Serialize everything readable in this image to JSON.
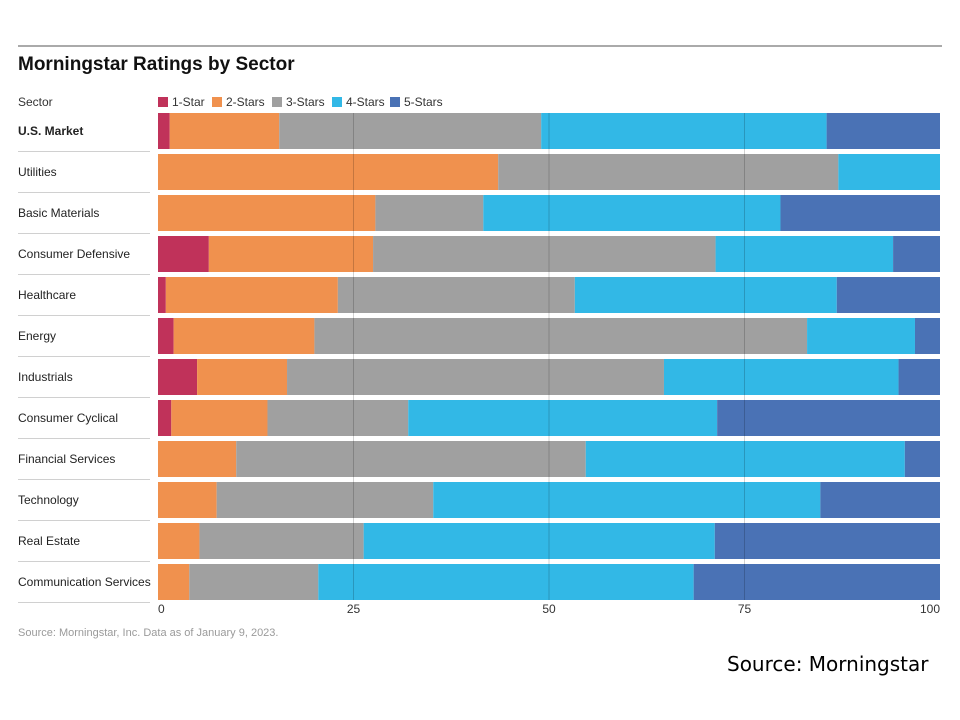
{
  "chart_data": {
    "type": "bar",
    "orientation": "horizontal",
    "stacked": true,
    "title": "Morningstar Ratings by Sector",
    "category_header": "Sector",
    "categories": [
      "U.S. Market",
      "Utilities",
      "Basic Materials",
      "Consumer Defensive",
      "Healthcare",
      "Energy",
      "Industrials",
      "Consumer Cyclical",
      "Financial Services",
      "Technology",
      "Real Estate",
      "Communication Services"
    ],
    "highlight_category": "U.S. Market",
    "series": [
      {
        "name": "1-Star",
        "color": "#c0325a",
        "values": [
          1.5,
          0,
          0,
          6.5,
          1,
          2,
          5,
          1.7,
          0,
          0,
          0,
          0
        ]
      },
      {
        "name": "2-Stars",
        "color": "#f0914e",
        "values": [
          14,
          43.5,
          27.8,
          21,
          22,
          18,
          11.5,
          12.3,
          10,
          7.5,
          5.3,
          4
        ]
      },
      {
        "name": "3-Stars",
        "color": "#a0a0a0",
        "values": [
          33.5,
          43.5,
          13.8,
          43.8,
          30.3,
          63,
          48.2,
          18,
          44.7,
          27.7,
          21,
          16.5
        ]
      },
      {
        "name": "4-Stars",
        "color": "#32b8e6",
        "values": [
          36.5,
          13,
          38,
          22.7,
          33.5,
          13.8,
          30,
          39.5,
          40.8,
          49.5,
          44.9,
          48
        ]
      },
      {
        "name": "5-Stars",
        "color": "#4a72b5",
        "values": [
          14.5,
          0,
          20.4,
          6,
          13.2,
          3.2,
          5.3,
          28.5,
          4.5,
          15.3,
          28.8,
          31.5
        ]
      }
    ],
    "xlim": [
      0,
      100
    ],
    "xticks": [
      0,
      25,
      50,
      75,
      100
    ],
    "grid": true,
    "legend_position": "top"
  },
  "note": "Source: Morningstar, Inc. Data as of January 9, 2023.",
  "source_caption": "Source: Morningstar"
}
